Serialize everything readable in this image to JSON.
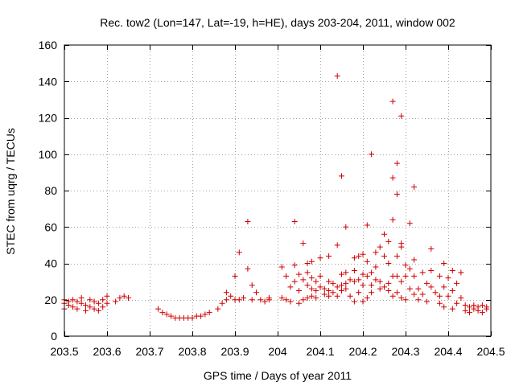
{
  "chart_data": {
    "type": "scatter",
    "title": "Rec. tow2 (Lon=147, Lat=-19, h=HE), days 203-204, 2011, window 002",
    "xlabel": "GPS time / Days of year 2011",
    "ylabel": "STEC from uqrg / TECUs",
    "xlim": [
      203.5,
      204.5
    ],
    "ylim": [
      0,
      160
    ],
    "xticks": [
      203.5,
      203.6,
      203.7,
      203.8,
      203.9,
      204,
      204.1,
      204.2,
      204.3,
      204.4,
      204.5
    ],
    "xtick_labels": [
      "203.5",
      "203.6",
      "203.7",
      "203.8",
      "203.9",
      "204",
      "204.1",
      "204.2",
      "204.3",
      "204.4",
      "204.5"
    ],
    "yticks": [
      0,
      20,
      40,
      60,
      80,
      100,
      120,
      140,
      160
    ],
    "ytick_labels": [
      "0",
      "20",
      "40",
      "60",
      "80",
      "100",
      "120",
      "140",
      "160"
    ],
    "grid": true,
    "marker": "+",
    "color": "#d00000",
    "series": [
      {
        "name": "STEC",
        "points": [
          [
            203.5,
            20
          ],
          [
            203.5,
            18
          ],
          [
            203.5,
            15
          ],
          [
            203.51,
            19
          ],
          [
            203.51,
            17
          ],
          [
            203.52,
            20
          ],
          [
            203.52,
            16
          ],
          [
            203.53,
            19
          ],
          [
            203.53,
            15
          ],
          [
            203.54,
            21
          ],
          [
            203.54,
            18
          ],
          [
            203.55,
            17
          ],
          [
            203.55,
            14
          ],
          [
            203.56,
            20
          ],
          [
            203.56,
            16
          ],
          [
            203.57,
            19
          ],
          [
            203.57,
            15
          ],
          [
            203.58,
            18
          ],
          [
            203.58,
            14
          ],
          [
            203.59,
            20
          ],
          [
            203.59,
            16
          ],
          [
            203.6,
            22
          ],
          [
            203.6,
            18
          ],
          [
            203.62,
            19
          ],
          [
            203.63,
            21
          ],
          [
            203.64,
            22
          ],
          [
            203.65,
            21
          ],
          [
            203.72,
            15
          ],
          [
            203.73,
            13
          ],
          [
            203.74,
            12
          ],
          [
            203.75,
            11
          ],
          [
            203.76,
            10
          ],
          [
            203.77,
            10
          ],
          [
            203.78,
            10
          ],
          [
            203.79,
            10
          ],
          [
            203.8,
            10
          ],
          [
            203.81,
            11
          ],
          [
            203.82,
            11
          ],
          [
            203.83,
            12
          ],
          [
            203.84,
            13
          ],
          [
            203.86,
            15
          ],
          [
            203.87,
            18
          ],
          [
            203.88,
            20
          ],
          [
            203.88,
            24
          ],
          [
            203.89,
            22
          ],
          [
            203.9,
            33
          ],
          [
            203.9,
            20
          ],
          [
            203.91,
            46
          ],
          [
            203.91,
            20
          ],
          [
            203.92,
            21
          ],
          [
            203.93,
            63
          ],
          [
            203.93,
            37
          ],
          [
            203.94,
            20
          ],
          [
            203.94,
            28
          ],
          [
            203.95,
            24
          ],
          [
            203.96,
            20
          ],
          [
            203.97,
            19
          ],
          [
            203.98,
            20
          ],
          [
            203.98,
            21
          ],
          [
            204.01,
            38
          ],
          [
            204.01,
            21
          ],
          [
            204.02,
            33
          ],
          [
            204.02,
            20
          ],
          [
            204.03,
            27
          ],
          [
            204.03,
            19
          ],
          [
            204.04,
            63
          ],
          [
            204.04,
            39
          ],
          [
            204.04,
            30
          ],
          [
            204.05,
            34
          ],
          [
            204.05,
            18
          ],
          [
            204.05,
            25
          ],
          [
            204.06,
            51
          ],
          [
            204.06,
            31
          ],
          [
            204.06,
            20
          ],
          [
            204.07,
            40
          ],
          [
            204.07,
            35
          ],
          [
            204.07,
            21
          ],
          [
            204.07,
            28
          ],
          [
            204.08,
            41
          ],
          [
            204.08,
            32
          ],
          [
            204.08,
            22
          ],
          [
            204.08,
            26
          ],
          [
            204.09,
            30
          ],
          [
            204.09,
            21
          ],
          [
            204.09,
            25
          ],
          [
            204.1,
            43
          ],
          [
            204.1,
            33
          ],
          [
            204.1,
            27
          ],
          [
            204.11,
            26
          ],
          [
            204.11,
            23
          ],
          [
            204.12,
            44
          ],
          [
            204.12,
            30
          ],
          [
            204.12,
            25
          ],
          [
            204.12,
            22
          ],
          [
            204.13,
            29
          ],
          [
            204.13,
            24
          ],
          [
            204.14,
            143
          ],
          [
            204.14,
            50
          ],
          [
            204.14,
            27
          ],
          [
            204.14,
            22
          ],
          [
            204.15,
            88
          ],
          [
            204.15,
            34
          ],
          [
            204.15,
            28
          ],
          [
            204.15,
            25
          ],
          [
            204.16,
            60
          ],
          [
            204.16,
            35
          ],
          [
            204.16,
            29
          ],
          [
            204.16,
            26
          ],
          [
            204.17,
            31
          ],
          [
            204.17,
            22
          ],
          [
            204.18,
            43
          ],
          [
            204.18,
            36
          ],
          [
            204.18,
            30
          ],
          [
            204.18,
            19
          ],
          [
            204.19,
            44
          ],
          [
            204.19,
            31
          ],
          [
            204.19,
            24
          ],
          [
            204.2,
            45
          ],
          [
            204.2,
            34
          ],
          [
            204.2,
            28
          ],
          [
            204.2,
            19
          ],
          [
            204.21,
            61
          ],
          [
            204.21,
            41
          ],
          [
            204.21,
            33
          ],
          [
            204.21,
            21
          ],
          [
            204.22,
            100
          ],
          [
            204.22,
            35
          ],
          [
            204.22,
            28
          ],
          [
            204.22,
            24
          ],
          [
            204.23,
            46
          ],
          [
            204.23,
            38
          ],
          [
            204.23,
            31
          ],
          [
            204.24,
            49
          ],
          [
            204.24,
            30
          ],
          [
            204.24,
            26
          ],
          [
            204.25,
            56
          ],
          [
            204.25,
            44
          ],
          [
            204.25,
            27
          ],
          [
            204.26,
            52
          ],
          [
            204.26,
            40
          ],
          [
            204.26,
            29
          ],
          [
            204.26,
            25
          ],
          [
            204.27,
            129
          ],
          [
            204.27,
            87
          ],
          [
            204.27,
            64
          ],
          [
            204.27,
            33
          ],
          [
            204.27,
            22
          ],
          [
            204.28,
            95
          ],
          [
            204.28,
            78
          ],
          [
            204.28,
            44
          ],
          [
            204.28,
            33
          ],
          [
            204.28,
            24
          ],
          [
            204.29,
            30
          ],
          [
            204.29,
            21
          ],
          [
            204.29,
            121
          ],
          [
            204.29,
            51
          ],
          [
            204.29,
            49
          ],
          [
            204.3,
            39
          ],
          [
            204.3,
            33
          ],
          [
            204.3,
            20
          ],
          [
            204.31,
            62
          ],
          [
            204.31,
            37
          ],
          [
            204.31,
            26
          ],
          [
            204.32,
            82
          ],
          [
            204.32,
            42
          ],
          [
            204.32,
            33
          ],
          [
            204.32,
            23
          ],
          [
            204.33,
            20
          ],
          [
            204.33,
            26
          ],
          [
            204.34,
            35
          ],
          [
            204.34,
            23
          ],
          [
            204.35,
            29
          ],
          [
            204.35,
            19
          ],
          [
            204.36,
            48
          ],
          [
            204.36,
            36
          ],
          [
            204.36,
            27
          ],
          [
            204.37,
            24
          ],
          [
            204.38,
            33
          ],
          [
            204.38,
            22
          ],
          [
            204.38,
            18
          ],
          [
            204.39,
            40
          ],
          [
            204.39,
            27
          ],
          [
            204.39,
            16
          ],
          [
            204.4,
            32
          ],
          [
            204.4,
            22
          ],
          [
            204.41,
            36
          ],
          [
            204.41,
            25
          ],
          [
            204.41,
            15
          ],
          [
            204.42,
            29
          ],
          [
            204.42,
            18
          ],
          [
            204.43,
            35
          ],
          [
            204.43,
            21
          ],
          [
            204.44,
            17
          ],
          [
            204.44,
            14
          ],
          [
            204.45,
            16
          ],
          [
            204.45,
            13
          ],
          [
            204.46,
            17
          ],
          [
            204.46,
            15
          ],
          [
            204.47,
            16
          ],
          [
            204.47,
            14
          ],
          [
            204.48,
            17
          ],
          [
            204.48,
            13
          ],
          [
            204.49,
            16
          ],
          [
            204.49,
            15
          ]
        ]
      }
    ]
  }
}
